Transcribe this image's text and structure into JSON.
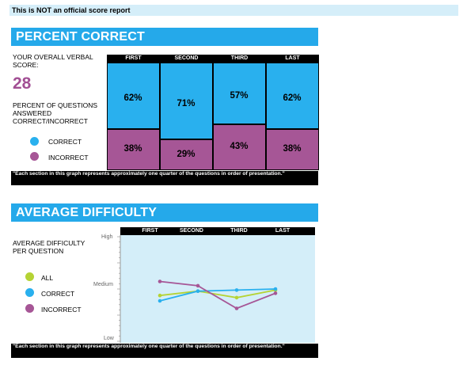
{
  "banner": "This is NOT an official score report",
  "percent_section": {
    "title": "PERCENT CORRECT",
    "overall_label": "YOUR OVERALL VERBAL SCORE:",
    "score": "28",
    "breakdown_label": "PERCENT OF QUESTIONS ANSWERED CORRECT/INCORRECT",
    "legend": [
      {
        "label": "CORRECT",
        "color": "#29b0ee"
      },
      {
        "label": "INCORRECT",
        "color": "#a65696"
      }
    ],
    "columns": [
      "FIRST",
      "SECOND",
      "THIRD",
      "LAST"
    ],
    "correct": [
      "62%",
      "71%",
      "57%",
      "62%"
    ],
    "incorrect": [
      "38%",
      "29%",
      "43%",
      "38%"
    ],
    "note": "\"Each section in this graph represents approximately one quarter of the questions in order of presentation.\""
  },
  "difficulty_section": {
    "title": "AVERAGE DIFFICULTY",
    "label": "AVERAGE DIFFICULTY PER QUESTION",
    "columns": [
      "FIRST",
      "SECOND",
      "THIRD",
      "LAST"
    ],
    "y_labels": {
      "high": "High",
      "medium": "Medium",
      "low": "Low"
    },
    "legend": [
      {
        "label": "ALL",
        "color": "#b5d334"
      },
      {
        "label": "CORRECT",
        "color": "#29b0ee"
      },
      {
        "label": "INCORRECT",
        "color": "#a65696"
      }
    ],
    "note": "\"Each section in this graph represents approximately one quarter of the questions in order of presentation.\""
  },
  "chart_data": [
    {
      "type": "bar",
      "title": "PERCENT CORRECT",
      "categories": [
        "FIRST",
        "SECOND",
        "THIRD",
        "LAST"
      ],
      "series": [
        {
          "name": "CORRECT",
          "values": [
            62,
            71,
            57,
            62
          ],
          "color": "#29b0ee"
        },
        {
          "name": "INCORRECT",
          "values": [
            38,
            29,
            43,
            38
          ],
          "color": "#a65696"
        }
      ],
      "stacked": true,
      "ylim": [
        0,
        100
      ]
    },
    {
      "type": "line",
      "title": "AVERAGE DIFFICULTY",
      "categories": [
        "FIRST",
        "SECOND",
        "THIRD",
        "LAST"
      ],
      "ylim": [
        0,
        1
      ],
      "series": [
        {
          "name": "ALL",
          "values": [
            0.44,
            0.48,
            0.42,
            0.49
          ],
          "color": "#b5d334"
        },
        {
          "name": "CORRECT",
          "values": [
            0.39,
            0.48,
            0.49,
            0.5
          ],
          "color": "#29b0ee"
        },
        {
          "name": "INCORRECT",
          "values": [
            0.57,
            0.53,
            0.32,
            0.46
          ],
          "color": "#a65696"
        }
      ]
    }
  ]
}
